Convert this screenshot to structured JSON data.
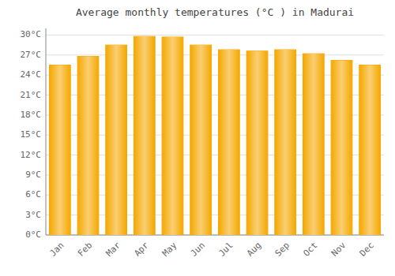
{
  "chart_data": {
    "type": "bar",
    "title": "Average monthly temperatures (°C ) in Madurai",
    "categories": [
      "Jan",
      "Feb",
      "Mar",
      "Apr",
      "May",
      "Jun",
      "Jul",
      "Aug",
      "Sep",
      "Oct",
      "Nov",
      "Dec"
    ],
    "values": [
      25.5,
      26.8,
      28.5,
      29.8,
      29.7,
      28.5,
      27.8,
      27.6,
      27.8,
      27.2,
      26.2,
      25.5
    ],
    "color": "#F5A800",
    "ylim": [
      0,
      31
    ],
    "yticks": [
      {
        "value": 0,
        "label": "0°C"
      },
      {
        "value": 3,
        "label": "3°C"
      },
      {
        "value": 6,
        "label": "6°C"
      },
      {
        "value": 9,
        "label": "9°C"
      },
      {
        "value": 12,
        "label": "12°C"
      },
      {
        "value": 15,
        "label": "15°C"
      },
      {
        "value": 18,
        "label": "18°C"
      },
      {
        "value": 21,
        "label": "21°C"
      },
      {
        "value": 24,
        "label": "24°C"
      },
      {
        "value": 27,
        "label": "27°C"
      },
      {
        "value": 30,
        "label": "30°C"
      }
    ],
    "grid": true
  }
}
